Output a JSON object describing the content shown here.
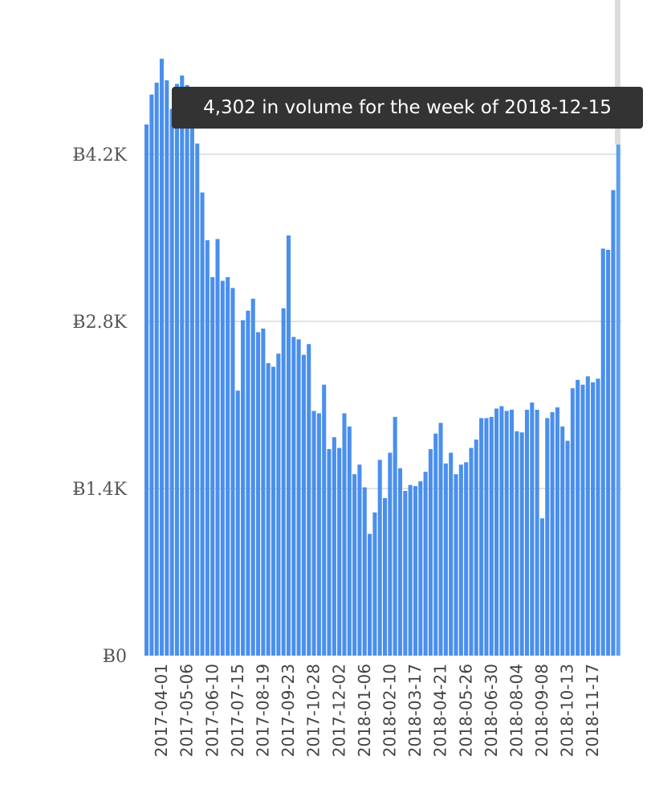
{
  "chart_data": {
    "type": "bar",
    "currency_symbol": "Ƀ",
    "ylim": [
      0,
      4700
    ],
    "y_ticks": [
      {
        "value": 0,
        "label": "Ƀ0"
      },
      {
        "value": 1400,
        "label": "Ƀ1.4K"
      },
      {
        "value": 2800,
        "label": "Ƀ2.8K"
      },
      {
        "value": 4200,
        "label": "Ƀ4.2K"
      }
    ],
    "x_tick_labels": [
      "2017-04-01",
      "2017-05-06",
      "2017-06-10",
      "2017-07-15",
      "2017-08-19",
      "2017-09-23",
      "2017-10-28",
      "2017-12-02",
      "2018-01-06",
      "2018-02-10",
      "2018-03-17",
      "2018-04-21",
      "2018-05-26",
      "2018-06-30",
      "2018-08-04",
      "2018-09-08",
      "2018-10-13",
      "2018-11-17"
    ],
    "first_week": "2017-03-11",
    "values": [
      4450,
      4700,
      4800,
      5000,
      4820,
      4580,
      4790,
      4860,
      4780,
      4440,
      4290,
      3880,
      3480,
      3170,
      3490,
      3140,
      3170,
      3080,
      2220,
      2810,
      2890,
      2990,
      2710,
      2740,
      2450,
      2420,
      2530,
      2910,
      3520,
      2670,
      2650,
      2520,
      2610,
      2050,
      2030,
      2270,
      1730,
      1830,
      1740,
      2030,
      1920,
      1520,
      1600,
      1410,
      1020,
      1200,
      1640,
      1320,
      1700,
      2000,
      1570,
      1380,
      1430,
      1420,
      1460,
      1540,
      1730,
      1860,
      1950,
      1610,
      1700,
      1520,
      1600,
      1620,
      1740,
      1810,
      1990,
      1990,
      2000,
      2070,
      2090,
      2050,
      2060,
      1880,
      1870,
      2060,
      2120,
      2060,
      1150,
      1990,
      2040,
      2080,
      1920,
      1800,
      2240,
      2310,
      2270,
      2340,
      2290,
      2320,
      3410,
      3400,
      3900,
      4302
    ],
    "highlighted_week": "2018-12-15",
    "tooltip": "4,302 in volume for the week of 2018-12-15"
  }
}
